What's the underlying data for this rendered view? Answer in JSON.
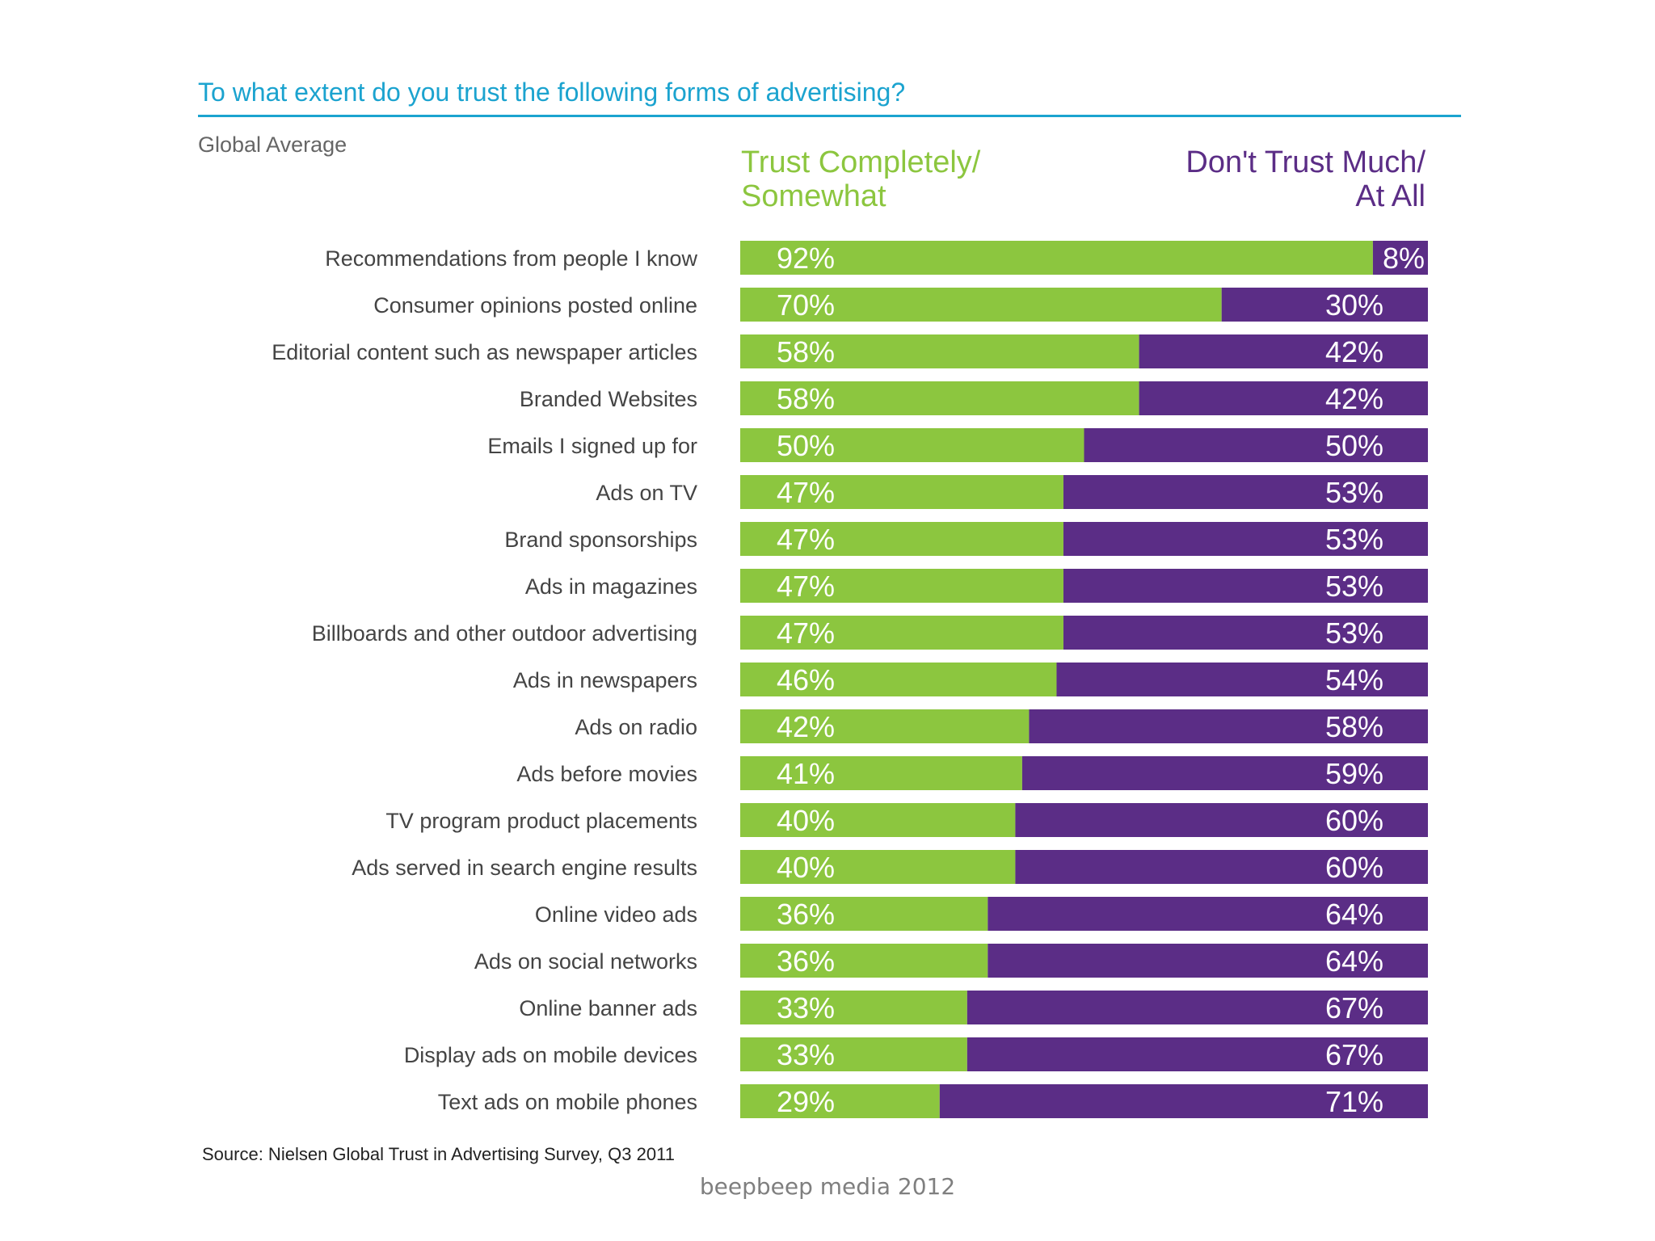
{
  "credit": "beepbeep media 2012",
  "source": "Source: Nielsen Global Trust in Advertising Survey, Q3 2011",
  "colors": {
    "trust": "#8cc63f",
    "distrust": "#5b2d86",
    "title": "#1ba3cf"
  },
  "chart_data": {
    "type": "bar",
    "stacked": true,
    "orientation": "horizontal",
    "title": "To what extent do you trust the following forms of advertising?",
    "subtitle": "Global Average",
    "legend_placement": "top",
    "grid": false,
    "series_labels": {
      "trust": [
        "Trust Completely/",
        "Somewhat"
      ],
      "distrust": [
        "Don't Trust Much/",
        "At All"
      ]
    },
    "categories": [
      "Recommendations from people I know",
      "Consumer opinions posted online",
      "Editorial content such as newspaper articles",
      "Branded Websites",
      "Emails I signed up for",
      "Ads on TV",
      "Brand sponsorships",
      "Ads in magazines",
      "Billboards and other outdoor advertising",
      "Ads in newspapers",
      "Ads on radio",
      "Ads before movies",
      "TV program product placements",
      "Ads served in search engine results",
      "Online video ads",
      "Ads on social networks",
      "Online banner ads",
      "Display ads on mobile devices",
      "Text ads on mobile phones"
    ],
    "series": [
      {
        "name": "Trust Completely/ Somewhat",
        "values": [
          92,
          70,
          58,
          58,
          50,
          47,
          47,
          47,
          47,
          46,
          42,
          41,
          40,
          40,
          36,
          36,
          33,
          33,
          29
        ]
      },
      {
        "name": "Don't Trust Much/ At All",
        "values": [
          8,
          30,
          42,
          42,
          50,
          53,
          53,
          53,
          53,
          54,
          58,
          59,
          60,
          60,
          64,
          64,
          67,
          67,
          71
        ]
      }
    ],
    "xlim": [
      0,
      100
    ]
  }
}
